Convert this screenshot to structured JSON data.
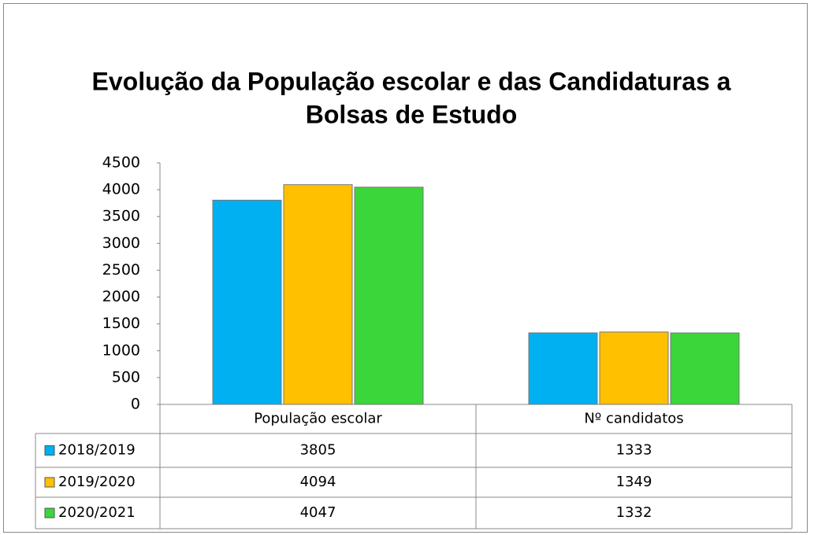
{
  "chart_data": {
    "type": "bar",
    "title": [
      "Evolução da População escolar e das Candidaturas a",
      "Bolsas de Estudo"
    ],
    "categories": [
      "População escolar",
      "Nº candidatos"
    ],
    "series": [
      {
        "name": "2018/2019",
        "color": "#00b0f0",
        "values": [
          3805,
          1333
        ]
      },
      {
        "name": "2019/2020",
        "color": "#ffc000",
        "values": [
          4094,
          1349
        ]
      },
      {
        "name": "2020/2021",
        "color": "#3ad63a",
        "values": [
          4047,
          1332
        ]
      }
    ],
    "ylim": [
      0,
      4500
    ],
    "yticks": [
      0,
      500,
      1000,
      1500,
      2000,
      2500,
      3000,
      3500,
      4000,
      4500
    ]
  }
}
